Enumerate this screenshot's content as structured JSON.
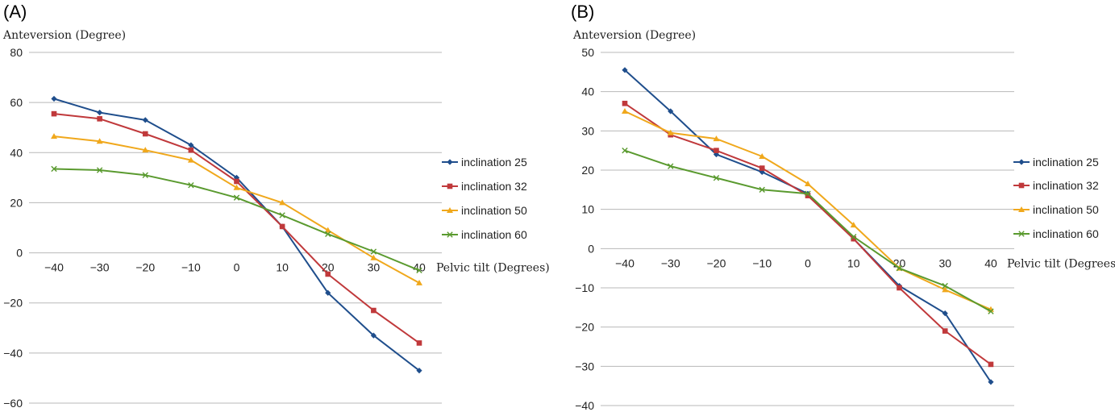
{
  "colors": {
    "inclination 25": "#1f4e8c",
    "inclination 32": "#c0393b",
    "inclination 50": "#f0a81c",
    "inclination 60": "#5a9a2f",
    "grid": "#b8b8b8"
  },
  "markers": {
    "inclination 25": "diamond",
    "inclination 32": "square",
    "inclination 50": "triangle",
    "inclination 60": "cross"
  },
  "chart_data": [
    {
      "type": "line",
      "panel_label": "(A)",
      "ylabel": "Anteversion (Degree)",
      "xlabel": "Pelvic tilt (Degrees)",
      "x": [
        -40,
        -30,
        -20,
        -10,
        0,
        10,
        20,
        30,
        40
      ],
      "x_tick_labels": [
        "−40",
        "−30",
        "−20",
        "−10",
        "0",
        "10",
        "20",
        "30",
        "40"
      ],
      "ylim": [
        -60,
        80
      ],
      "y_ticks": [
        80,
        60,
        40,
        20,
        0,
        -20,
        -40,
        -60
      ],
      "y_tick_labels": [
        "80",
        "60",
        "40",
        "20",
        "0",
        "−20",
        "−40",
        "−60"
      ],
      "grid": true,
      "legend_position": "right",
      "series": [
        {
          "name": "inclination 25",
          "values": [
            61.5,
            56,
            53,
            43,
            30,
            10.5,
            -16,
            -33,
            -47
          ]
        },
        {
          "name": "inclination 32",
          "values": [
            55.5,
            53.5,
            47.5,
            41,
            28.5,
            10.5,
            -8.5,
            -23,
            -36
          ]
        },
        {
          "name": "inclination 50",
          "values": [
            46.5,
            44.5,
            41,
            37,
            26,
            20,
            9,
            -2,
            -12
          ]
        },
        {
          "name": "inclination 60",
          "values": [
            33.5,
            33,
            31,
            27,
            22,
            15,
            7.5,
            0.5,
            -7
          ]
        }
      ]
    },
    {
      "type": "line",
      "panel_label": "(B)",
      "ylabel": "Anteversion (Degree)",
      "xlabel": "Pelvic tilt (Degrees)",
      "x": [
        -40,
        -30,
        -20,
        -10,
        0,
        10,
        20,
        30,
        40
      ],
      "x_tick_labels": [
        "−40",
        "−30",
        "−20",
        "−10",
        "0",
        "10",
        "20",
        "30",
        "40"
      ],
      "ylim": [
        -40,
        50
      ],
      "y_ticks": [
        50,
        40,
        30,
        20,
        10,
        0,
        -10,
        -20,
        -30,
        -40
      ],
      "y_tick_labels": [
        "50",
        "40",
        "30",
        "20",
        "10",
        "0",
        "−10",
        "−20",
        "−30",
        "−40"
      ],
      "grid": true,
      "legend_position": "right",
      "series": [
        {
          "name": "inclination 25",
          "values": [
            45.5,
            35,
            24,
            19.5,
            14,
            2.5,
            -9.5,
            -16.5,
            -34
          ]
        },
        {
          "name": "inclination 32",
          "values": [
            37,
            29,
            25,
            20.5,
            13.5,
            2.5,
            -10,
            -21,
            -29.5
          ]
        },
        {
          "name": "inclination 50",
          "values": [
            35,
            29.5,
            28,
            23.5,
            16.5,
            6,
            -5,
            -10.5,
            -15.5
          ]
        },
        {
          "name": "inclination 60",
          "values": [
            25,
            21,
            18,
            15,
            14,
            3,
            -5,
            -9.5,
            -16
          ]
        }
      ]
    }
  ]
}
